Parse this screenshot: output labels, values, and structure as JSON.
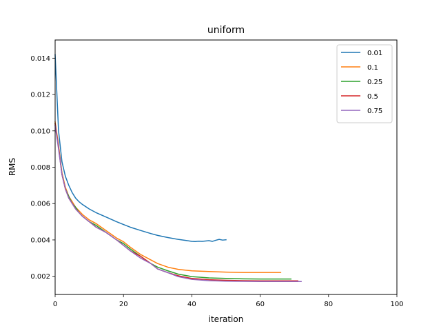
{
  "chart_data": {
    "type": "line",
    "title": "uniform",
    "xlabel": "iteration",
    "ylabel": "RMS",
    "xlim": [
      0,
      100
    ],
    "ylim": [
      0.001,
      0.015
    ],
    "xticks": [
      0,
      20,
      40,
      60,
      80,
      100
    ],
    "xtick_labels": [
      "0",
      "20",
      "40",
      "60",
      "80",
      "100"
    ],
    "yticks": [
      0.002,
      0.004,
      0.006,
      0.008,
      0.01,
      0.012,
      0.014
    ],
    "ytick_labels": [
      "0.002",
      "0.004",
      "0.006",
      "0.008",
      "0.010",
      "0.012",
      "0.014"
    ],
    "grid": false,
    "legend_position": "top-right",
    "series": [
      {
        "name": "0.01",
        "color": "#1f77b4",
        "points": [
          [
            0,
            0.0142
          ],
          [
            1,
            0.01
          ],
          [
            2,
            0.0083
          ],
          [
            3,
            0.0075
          ],
          [
            4,
            0.007
          ],
          [
            5,
            0.0066
          ],
          [
            6,
            0.0063
          ],
          [
            7,
            0.0061
          ],
          [
            8,
            0.00595
          ],
          [
            10,
            0.0057
          ],
          [
            12,
            0.0055
          ],
          [
            15,
            0.00525
          ],
          [
            18,
            0.005
          ],
          [
            20,
            0.00485
          ],
          [
            22,
            0.0047
          ],
          [
            25,
            0.00452
          ],
          [
            28,
            0.00435
          ],
          [
            30,
            0.00425
          ],
          [
            33,
            0.00413
          ],
          [
            36,
            0.00403
          ],
          [
            38,
            0.00398
          ],
          [
            40,
            0.00392
          ],
          [
            41,
            0.00391
          ],
          [
            42,
            0.00393
          ],
          [
            43,
            0.00392
          ],
          [
            44,
            0.00394
          ],
          [
            45,
            0.00396
          ],
          [
            46,
            0.00392
          ],
          [
            47,
            0.00398
          ],
          [
            48,
            0.00403
          ],
          [
            49,
            0.00399
          ],
          [
            50,
            0.00401
          ]
        ]
      },
      {
        "name": "0.1",
        "color": "#ff7f0e",
        "points": [
          [
            0,
            0.0105
          ],
          [
            1,
            0.0092
          ],
          [
            2,
            0.0077
          ],
          [
            3,
            0.0069
          ],
          [
            4,
            0.0064
          ],
          [
            5,
            0.0061
          ],
          [
            6,
            0.0058
          ],
          [
            7,
            0.0056
          ],
          [
            8,
            0.0054
          ],
          [
            10,
            0.0051
          ],
          [
            12,
            0.0049
          ],
          [
            15,
            0.0045
          ],
          [
            18,
            0.0041
          ],
          [
            20,
            0.0039
          ],
          [
            22,
            0.0036
          ],
          [
            25,
            0.0032
          ],
          [
            28,
            0.0029
          ],
          [
            30,
            0.0027
          ],
          [
            33,
            0.0025
          ],
          [
            36,
            0.00238
          ],
          [
            40,
            0.0023
          ],
          [
            45,
            0.00226
          ],
          [
            50,
            0.00223
          ],
          [
            55,
            0.00221
          ],
          [
            60,
            0.00221
          ],
          [
            66,
            0.00221
          ]
        ]
      },
      {
        "name": "0.25",
        "color": "#2ca02c",
        "points": [
          [
            0,
            0.0104
          ],
          [
            1,
            0.0091
          ],
          [
            2,
            0.0076
          ],
          [
            3,
            0.0068
          ],
          [
            4,
            0.0064
          ],
          [
            5,
            0.006
          ],
          [
            6,
            0.0058
          ],
          [
            7,
            0.0055
          ],
          [
            8,
            0.0053
          ],
          [
            10,
            0.005
          ],
          [
            12,
            0.0048
          ],
          [
            15,
            0.0044
          ],
          [
            18,
            0.004
          ],
          [
            20,
            0.0038
          ],
          [
            22,
            0.0035
          ],
          [
            25,
            0.0031
          ],
          [
            28,
            0.0027
          ],
          [
            30,
            0.0025
          ],
          [
            33,
            0.0023
          ],
          [
            36,
            0.00212
          ],
          [
            40,
            0.00198
          ],
          [
            45,
            0.00191
          ],
          [
            50,
            0.00188
          ],
          [
            55,
            0.00186
          ],
          [
            60,
            0.00185
          ],
          [
            65,
            0.00185
          ],
          [
            69,
            0.00185
          ]
        ]
      },
      {
        "name": "0.5",
        "color": "#d62728",
        "points": [
          [
            0,
            0.0104
          ],
          [
            1,
            0.0091
          ],
          [
            2,
            0.0076
          ],
          [
            3,
            0.0068
          ],
          [
            4,
            0.0063
          ],
          [
            5,
            0.006
          ],
          [
            6,
            0.0057
          ],
          [
            7,
            0.0055
          ],
          [
            8,
            0.0053
          ],
          [
            10,
            0.005
          ],
          [
            12,
            0.0047
          ],
          [
            15,
            0.0044
          ],
          [
            18,
            0.004
          ],
          [
            20,
            0.0037
          ],
          [
            22,
            0.0034
          ],
          [
            25,
            0.0031
          ],
          [
            28,
            0.0027
          ],
          [
            30,
            0.0024
          ],
          [
            33,
            0.0022
          ],
          [
            36,
            0.00203
          ],
          [
            40,
            0.00188
          ],
          [
            45,
            0.00181
          ],
          [
            50,
            0.00178
          ],
          [
            55,
            0.00176
          ],
          [
            60,
            0.00175
          ],
          [
            65,
            0.00175
          ],
          [
            71,
            0.00175
          ]
        ]
      },
      {
        "name": "0.75",
        "color": "#9467bd",
        "points": [
          [
            0,
            0.0103
          ],
          [
            1,
            0.009
          ],
          [
            2,
            0.0076
          ],
          [
            3,
            0.0068
          ],
          [
            4,
            0.0063
          ],
          [
            5,
            0.006
          ],
          [
            6,
            0.0057
          ],
          [
            7,
            0.0055
          ],
          [
            8,
            0.0053
          ],
          [
            10,
            0.005
          ],
          [
            12,
            0.0047
          ],
          [
            15,
            0.0044
          ],
          [
            18,
            0.004
          ],
          [
            20,
            0.0037
          ],
          [
            22,
            0.0034
          ],
          [
            25,
            0.003
          ],
          [
            28,
            0.0027
          ],
          [
            30,
            0.0024
          ],
          [
            33,
            0.0022
          ],
          [
            36,
            0.00198
          ],
          [
            40,
            0.00183
          ],
          [
            45,
            0.00176
          ],
          [
            50,
            0.00173
          ],
          [
            55,
            0.00172
          ],
          [
            60,
            0.00171
          ],
          [
            65,
            0.00171
          ],
          [
            72,
            0.00171
          ]
        ]
      }
    ]
  }
}
